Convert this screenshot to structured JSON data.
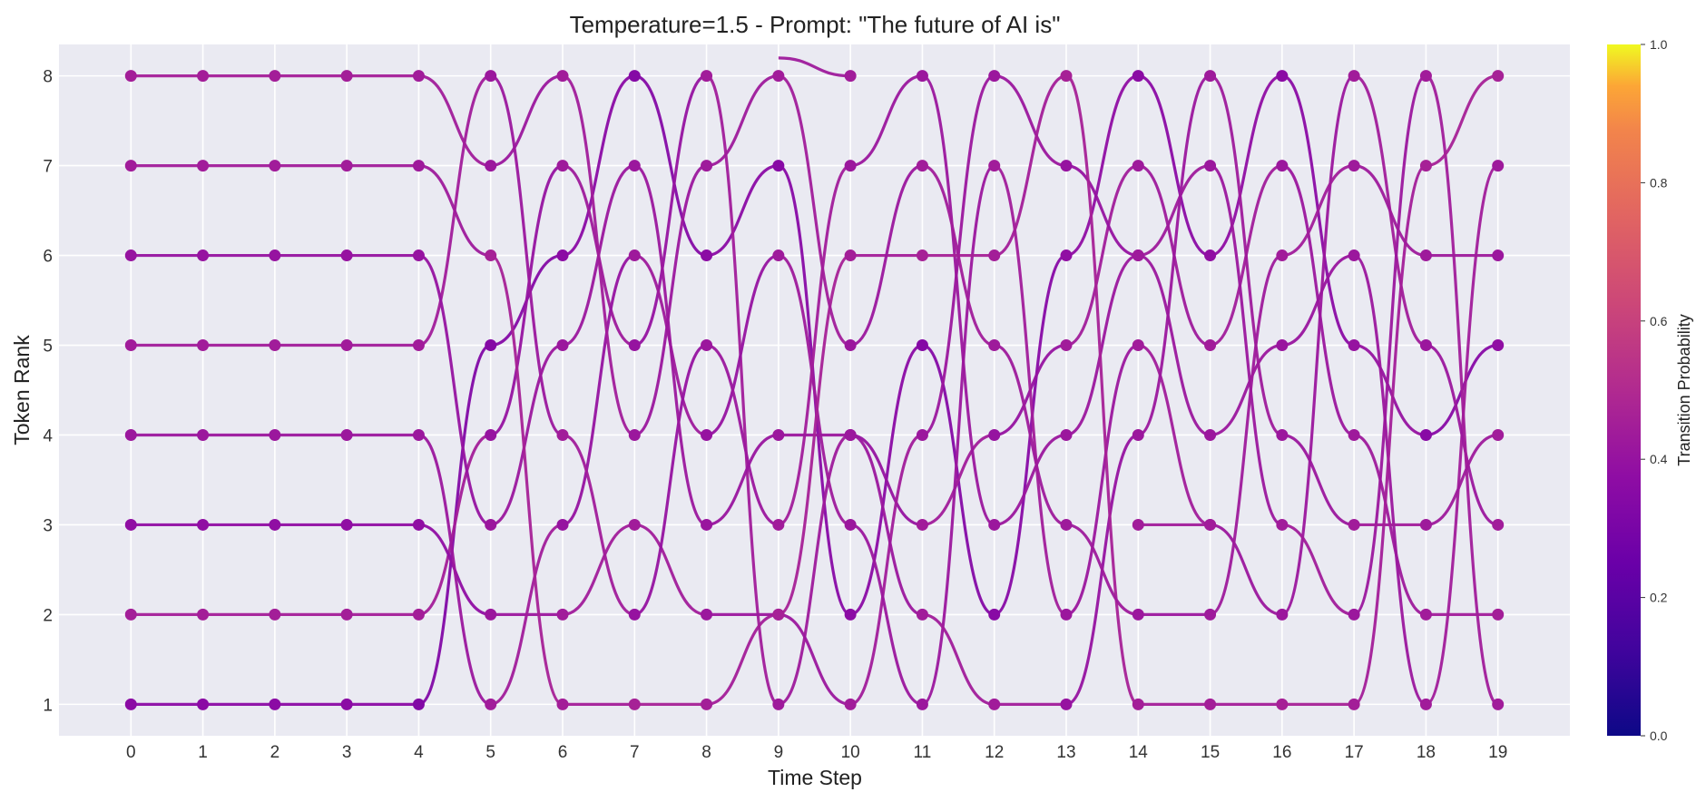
{
  "chart_data": {
    "type": "line",
    "title": "Temperature=1.5 - Prompt: \"The future of AI is\"",
    "xlabel": "Time Step",
    "ylabel": "Token Rank",
    "x": [
      0,
      1,
      2,
      3,
      4,
      5,
      6,
      7,
      8,
      9,
      10,
      11,
      12,
      13,
      14,
      15,
      16,
      17,
      18,
      19
    ],
    "xlim": [
      -1,
      20
    ],
    "ylim": [
      8.35,
      0.65
    ],
    "yticks": [
      1,
      2,
      3,
      4,
      5,
      6,
      7,
      8
    ],
    "grid": true,
    "colormap": "plasma",
    "colorbar": {
      "label": "Transition Probability",
      "range": [
        0.0,
        1.0
      ],
      "ticks": [
        "0.0",
        "0.2",
        "0.4",
        "0.6",
        "0.8",
        "1.0"
      ]
    },
    "marker_color": "#b92d9c",
    "series": [
      {
        "ranks": [
          1,
          1,
          1,
          1,
          1,
          5,
          6,
          8,
          6,
          7,
          2,
          5,
          2,
          6,
          8,
          6,
          8,
          5,
          4,
          5
        ],
        "probs": [
          0.36,
          0.36,
          0.36,
          0.36,
          0.33,
          0.34,
          0.36,
          0.34,
          0.36,
          0.35,
          0.36,
          0.34,
          0.35,
          0.38,
          0.36,
          0.38,
          0.36,
          0.4,
          0.35,
          0.38
        ]
      },
      {
        "ranks": [
          2,
          2,
          2,
          2,
          2,
          4,
          7,
          5,
          8,
          1,
          4,
          3,
          4,
          5,
          7,
          5,
          7,
          4,
          2,
          2
        ],
        "probs": [
          0.45,
          0.45,
          0.45,
          0.45,
          0.45,
          0.4,
          0.43,
          0.4,
          0.44,
          0.43,
          0.4,
          0.44,
          0.4,
          0.44,
          0.43,
          0.44,
          0.42,
          0.43,
          0.44,
          0.45
        ]
      },
      {
        "ranks": [
          3,
          3,
          3,
          3,
          3,
          2,
          2,
          3,
          2,
          2,
          1,
          4,
          8,
          7,
          6,
          4,
          5,
          6,
          1,
          7
        ],
        "probs": [
          0.38,
          0.38,
          0.38,
          0.38,
          0.38,
          0.42,
          0.44,
          0.44,
          0.42,
          0.42,
          0.44,
          0.42,
          0.42,
          0.4,
          0.42,
          0.42,
          0.41,
          0.42,
          0.44,
          0.43
        ]
      },
      {
        "ranks": [
          4,
          4,
          4,
          4,
          4,
          1,
          3,
          6,
          4,
          6,
          3,
          1,
          7,
          2,
          5,
          3,
          2,
          8,
          5,
          3
        ],
        "probs": [
          0.42,
          0.42,
          0.42,
          0.42,
          0.42,
          0.44,
          0.4,
          0.43,
          0.4,
          0.43,
          0.42,
          0.42,
          0.44,
          0.42,
          0.44,
          0.42,
          0.42,
          0.44,
          0.42,
          0.44
        ]
      },
      {
        "ranks": [
          5,
          5,
          5,
          5,
          5,
          8,
          4,
          2,
          5,
          3,
          7,
          8,
          3,
          4,
          6,
          7,
          3,
          2,
          8,
          1
        ],
        "probs": [
          0.44,
          0.44,
          0.44,
          0.44,
          0.44,
          0.42,
          0.44,
          0.4,
          0.42,
          0.44,
          0.42,
          0.42,
          0.42,
          0.42,
          0.43,
          0.42,
          0.44,
          0.42,
          0.44,
          0.44
        ]
      },
      {
        "ranks": [
          6,
          6,
          6,
          6,
          6,
          3,
          5,
          7,
          3,
          4,
          4,
          2,
          1,
          1,
          4,
          8,
          4,
          3,
          3,
          4
        ],
        "probs": [
          0.4,
          0.4,
          0.4,
          0.4,
          0.4,
          0.42,
          0.42,
          0.42,
          0.41,
          0.42,
          0.42,
          0.44,
          0.44,
          0.4,
          0.42,
          0.43,
          0.42,
          0.44,
          0.43,
          0.44
        ]
      },
      {
        "ranks": [
          7,
          7,
          7,
          7,
          7,
          6,
          1,
          1,
          1,
          2,
          6,
          6,
          6,
          8,
          1,
          1,
          1,
          1,
          7,
          8
        ],
        "probs": [
          0.44,
          0.44,
          0.44,
          0.44,
          0.43,
          0.46,
          0.45,
          0.46,
          0.45,
          0.46,
          0.45,
          0.46,
          0.45,
          0.46,
          0.45,
          0.45,
          0.46,
          0.45,
          0.46,
          0.46
        ]
      },
      {
        "ranks": [
          8,
          8,
          8,
          8,
          8,
          7,
          8,
          4,
          7,
          8,
          5,
          7,
          5,
          3,
          2,
          2,
          6,
          7,
          6,
          6
        ],
        "probs": [
          0.45,
          0.45,
          0.45,
          0.45,
          0.44,
          0.42,
          0.44,
          0.42,
          0.43,
          0.44,
          0.42,
          0.44,
          0.43,
          0.43,
          0.42,
          0.43,
          0.44,
          0.43,
          0.43,
          0.42
        ]
      },
      {
        "ranks": [
          null,
          null,
          null,
          null,
          null,
          null,
          null,
          null,
          null,
          9,
          8,
          null,
          null,
          null,
          3,
          3,
          null,
          null,
          null,
          null
        ],
        "probs": [
          0,
          0,
          0,
          0,
          0,
          0,
          0,
          0,
          0,
          0.43,
          0.44,
          0,
          0,
          0,
          0.44,
          0.44,
          0,
          0,
          0,
          0
        ]
      }
    ]
  }
}
